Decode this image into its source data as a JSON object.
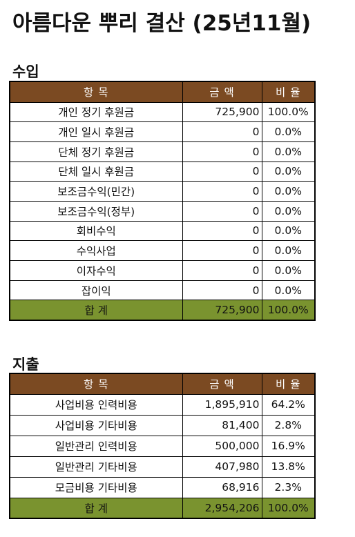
{
  "title": "아름다운 뿌리 결산 (25년11월)",
  "income": {
    "heading": "수입",
    "headers": {
      "item": "항 목",
      "amount": "금 액",
      "ratio": "비 율"
    },
    "rows": [
      {
        "item": "개인 정기 후원금",
        "amount": "725,900",
        "ratio": "100.0%"
      },
      {
        "item": "개인 일시 후원금",
        "amount": "0",
        "ratio": "0.0%"
      },
      {
        "item": "단체 정기 후원금",
        "amount": "0",
        "ratio": "0.0%"
      },
      {
        "item": "단체 일시 후원금",
        "amount": "0",
        "ratio": "0.0%"
      },
      {
        "item": "보조금수익(민간)",
        "amount": "0",
        "ratio": "0.0%"
      },
      {
        "item": "보조금수익(정부)",
        "amount": "0",
        "ratio": "0.0%"
      },
      {
        "item": "회비수익",
        "amount": "0",
        "ratio": "0.0%"
      },
      {
        "item": "수익사업",
        "amount": "0",
        "ratio": "0.0%"
      },
      {
        "item": "이자수익",
        "amount": "0",
        "ratio": "0.0%"
      },
      {
        "item": "잡이익",
        "amount": "0",
        "ratio": "0.0%"
      }
    ],
    "total": {
      "item": "합 계",
      "amount": "725,900",
      "ratio": "100.0%"
    }
  },
  "expense": {
    "heading": "지출",
    "headers": {
      "item": "항 목",
      "amount": "금 액",
      "ratio": "비 율"
    },
    "rows": [
      {
        "item": "사업비용 인력비용",
        "amount": "1,895,910",
        "ratio": "64.2%"
      },
      {
        "item": "사업비용 기타비용",
        "amount": "81,400",
        "ratio": "2.8%"
      },
      {
        "item": "일반관리 인력비용",
        "amount": "500,000",
        "ratio": "16.9%"
      },
      {
        "item": "일반관리 기타비용",
        "amount": "407,980",
        "ratio": "13.8%"
      },
      {
        "item": "모금비용 기타비용",
        "amount": "68,916",
        "ratio": "2.3%"
      }
    ],
    "total": {
      "item": "합 계",
      "amount": "2,954,206",
      "ratio": "100.0%"
    }
  },
  "colors": {
    "header_bg": "#7b4a22",
    "total_bg": "#7a932f"
  }
}
